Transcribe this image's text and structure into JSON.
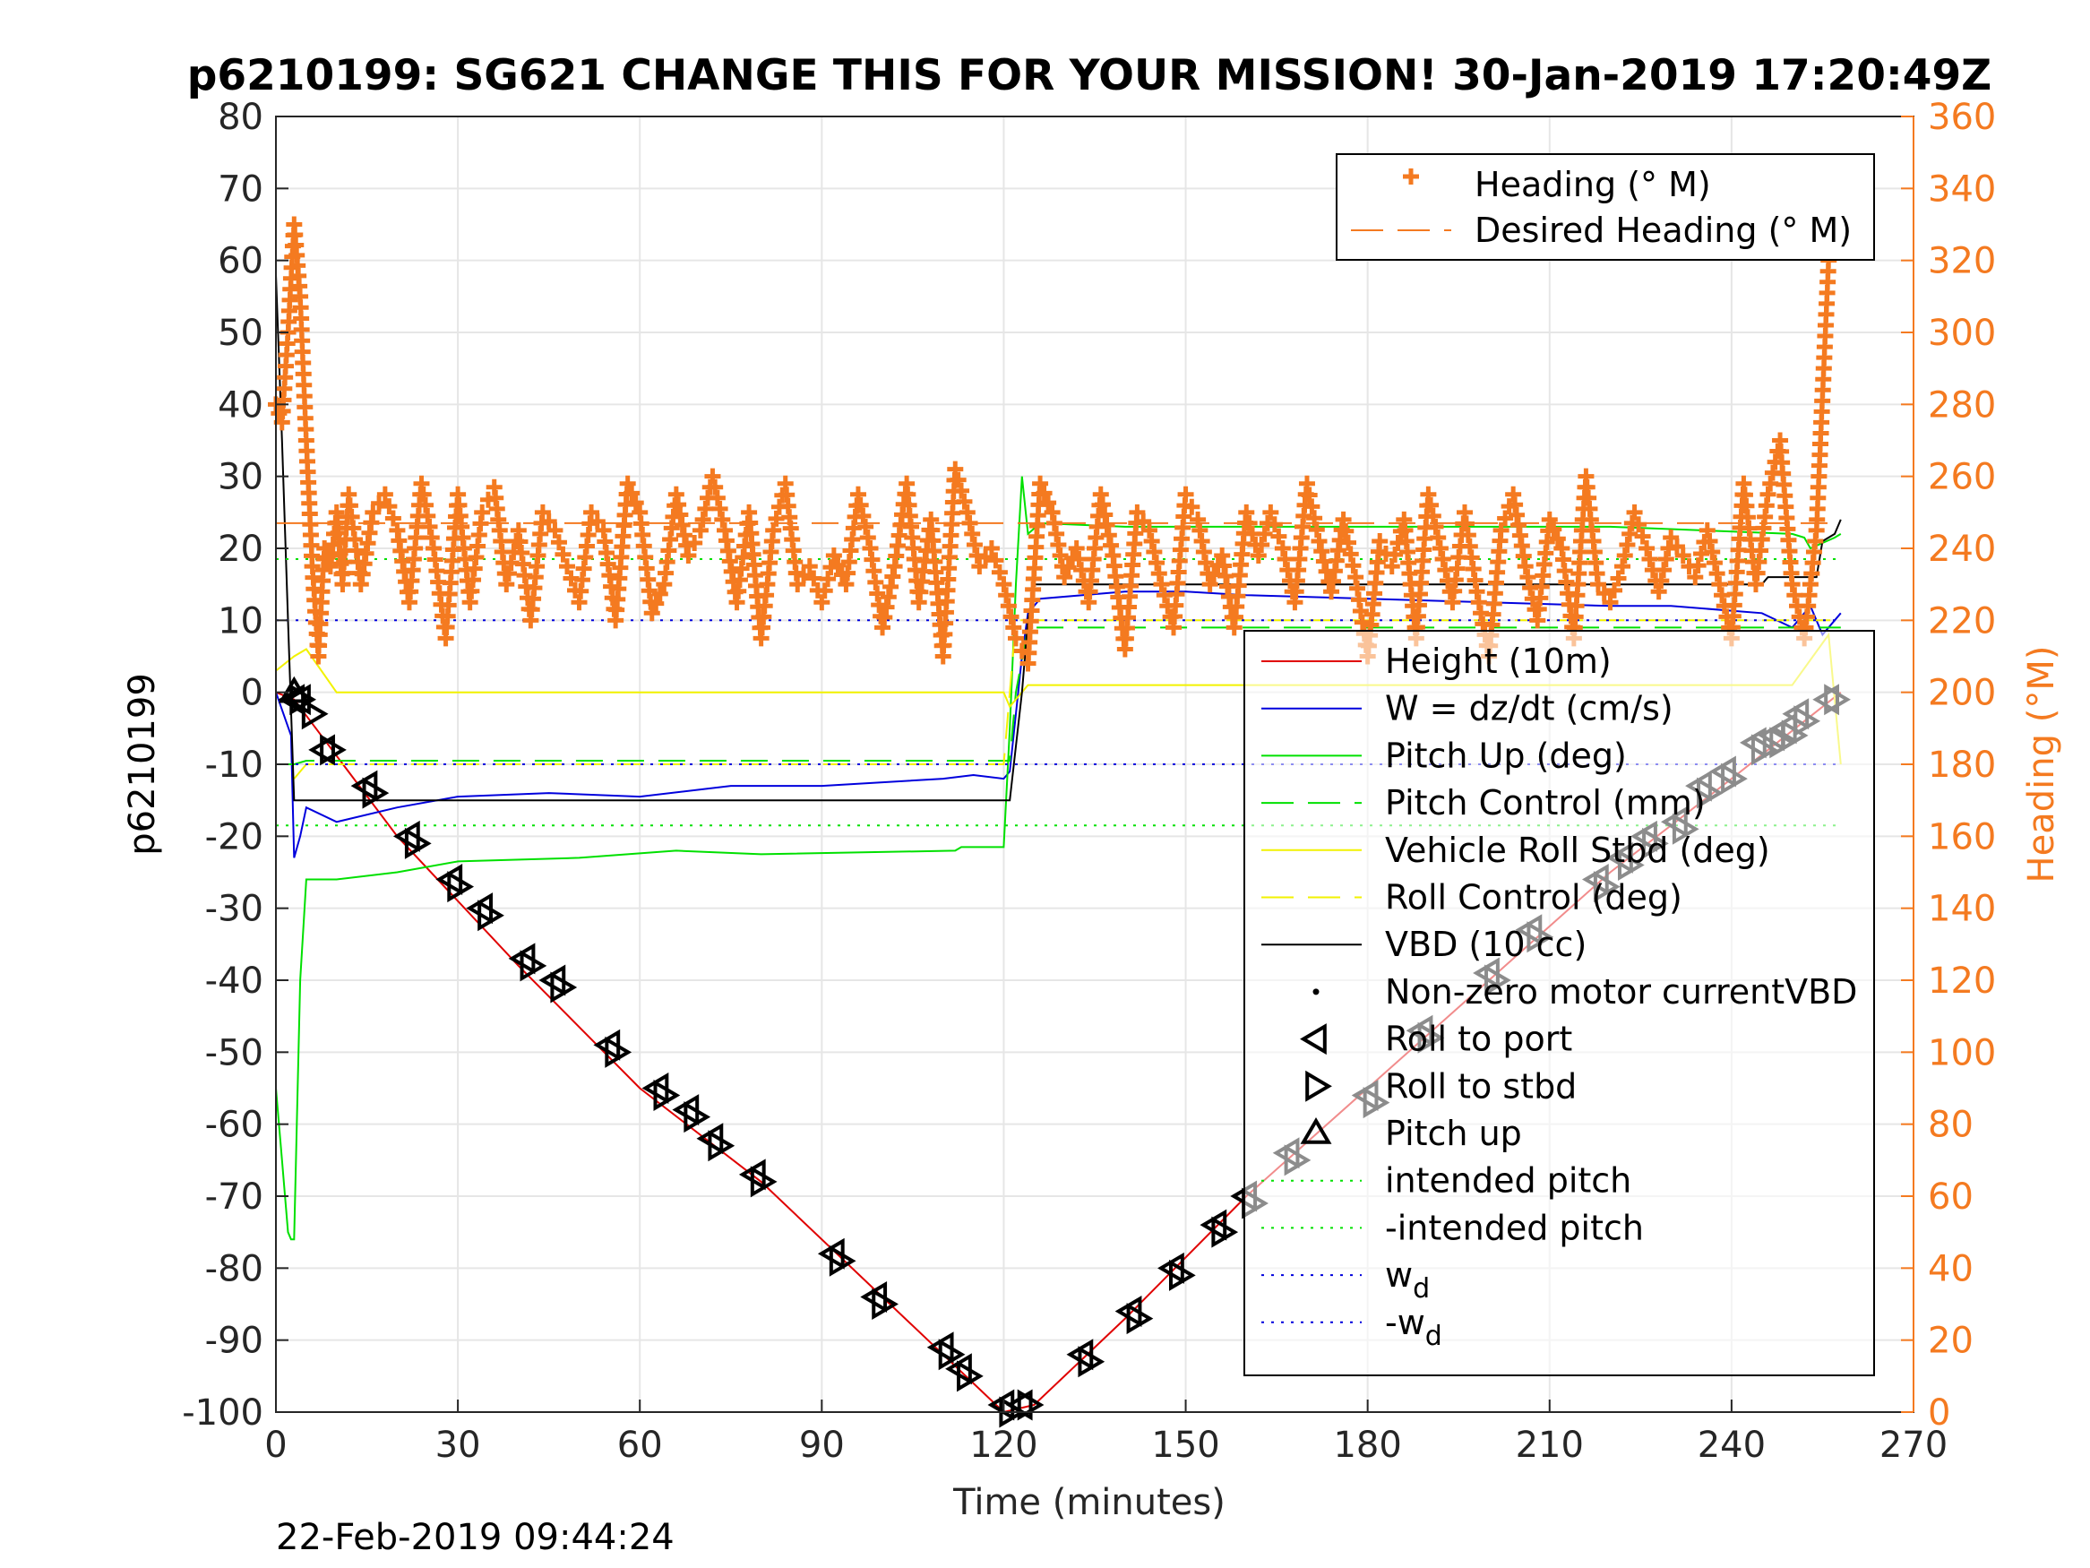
{
  "chart_data": {
    "type": "line",
    "title": "p6210199: SG621 CHANGE THIS FOR YOUR MISSION! 30-Jan-2019 17:20:49Z",
    "xlabel": "Time (minutes)",
    "ylabel_left": "p6210199",
    "ylabel_right": "Heading (°M)",
    "timestamp": "22-Feb-2019 09:44:24",
    "xlim": [
      0,
      270
    ],
    "ylim_left": [
      -100,
      80
    ],
    "ylim_right": [
      0,
      360
    ],
    "grid": true,
    "x_ticks": [
      0,
      30,
      60,
      90,
      120,
      150,
      180,
      210,
      240,
      270
    ],
    "x_tick_labels": [
      "0",
      "30",
      "60",
      "90",
      "120",
      "150",
      "180",
      "210",
      "240",
      "270"
    ],
    "y_left_ticks": [
      80,
      70,
      60,
      50,
      40,
      30,
      20,
      10,
      0,
      -10,
      -20,
      -30,
      -40,
      -50,
      -60,
      -70,
      -80,
      -90,
      -100
    ],
    "y_left_tick_labels": [
      "80",
      "70",
      "60",
      "50",
      "40",
      "30",
      "20",
      "10",
      "0",
      "-10",
      "-20",
      "-30",
      "-40",
      "-50",
      "-60",
      "-70",
      "-80",
      "-90",
      "-100"
    ],
    "y_right_ticks": [
      360,
      340,
      320,
      300,
      280,
      260,
      240,
      220,
      200,
      180,
      160,
      140,
      120,
      100,
      80,
      60,
      40,
      20,
      0
    ],
    "y_right_tick_labels": [
      "360",
      "340",
      "320",
      "300",
      "280",
      "260",
      "240",
      "220",
      "200",
      "180",
      "160",
      "140",
      "120",
      "100",
      "80",
      "60",
      "40",
      "20",
      "0"
    ],
    "colors": {
      "orange": "#f47a20",
      "red": "#e00000",
      "blue": "#0000dd",
      "green": "#00e000",
      "yellow": "#f2f200",
      "black": "#000000"
    },
    "legend_heading": {
      "placement": "top-right",
      "entries": [
        "Heading (° M)",
        "Desired Heading (° M)"
      ]
    },
    "legend_main": {
      "placement": "right",
      "entries": [
        {
          "label": "Height (10m)",
          "sub": ""
        },
        {
          "label": "W = dz/dt (cm/s)",
          "sub": ""
        },
        {
          "label": "Pitch Up (deg)",
          "sub": ""
        },
        {
          "label": "Pitch Control (mm)",
          "sub": ""
        },
        {
          "label": "Vehicle Roll Stbd (deg)",
          "sub": ""
        },
        {
          "label": "Roll Control (deg)",
          "sub": ""
        },
        {
          "label": "VBD (10 cc)",
          "sub": ""
        },
        {
          "label": "Non-zero motor currentVBD",
          "sub": ""
        },
        {
          "label": "Roll to port",
          "sub": ""
        },
        {
          "label": "Roll to stbd",
          "sub": ""
        },
        {
          "label": "Pitch up",
          "sub": ""
        },
        {
          "label": "intended pitch",
          "sub": ""
        },
        {
          "label": "-intended pitch",
          "sub": ""
        },
        {
          "label": "w",
          "sub": "d"
        },
        {
          "label": "-w",
          "sub": "d"
        }
      ]
    },
    "series": [
      {
        "name": "Height (10m)",
        "axis": "left",
        "x": [
          0,
          3,
          20,
          40,
          60,
          80,
          100,
          110,
          120,
          125,
          140,
          160,
          180,
          200,
          220,
          240,
          258
        ],
        "values": [
          0,
          -1,
          -20,
          -38,
          -55,
          -68,
          -84,
          -92,
          -100,
          -99,
          -87,
          -70,
          -55,
          -40,
          -25,
          -12,
          0
        ]
      },
      {
        "name": "W = dz/dt (cm/s)",
        "axis": "left",
        "x": [
          0,
          2.5,
          3,
          4,
          5,
          10,
          20,
          30,
          45,
          60,
          75,
          90,
          110,
          115,
          120,
          121,
          122,
          123,
          124,
          126,
          140,
          150,
          160,
          180,
          200,
          220,
          230,
          245,
          250,
          253,
          255,
          258
        ],
        "values": [
          0,
          -6,
          -23,
          -20,
          -16,
          -18,
          -16,
          -14.5,
          -14,
          -14.5,
          -13,
          -13,
          -12,
          -11.5,
          -12,
          -11,
          -3,
          5,
          11,
          13,
          14,
          14,
          13.5,
          13,
          12.5,
          12,
          12,
          11,
          9,
          12,
          8,
          11
        ]
      },
      {
        "name": "Pitch Up (deg)",
        "axis": "left",
        "x": [
          0,
          1,
          2,
          2.5,
          3,
          4,
          5,
          10,
          20,
          30,
          50,
          66,
          80,
          112,
          113,
          120,
          121,
          122,
          123,
          124,
          126,
          140,
          180,
          220,
          250,
          252,
          253,
          257,
          258
        ],
        "values": [
          -55,
          -65,
          -75,
          -76,
          -76,
          -40,
          -26,
          -26,
          -25,
          -23.5,
          -23,
          -22,
          -22.5,
          -22,
          -21.5,
          -21.5,
          -5,
          15,
          30,
          22,
          23.5,
          23,
          23,
          23,
          22,
          21.5,
          20,
          21.5,
          22
        ]
      },
      {
        "name": "Pitch Control (mm)",
        "axis": "left",
        "x": [
          2,
          3,
          5,
          50,
          121,
          122,
          124,
          180,
          250,
          258
        ],
        "values": [
          -10,
          -10,
          -9.5,
          -9.5,
          -9.5,
          0,
          9,
          9,
          9,
          9
        ]
      },
      {
        "name": "Vehicle Roll Stbd (deg)",
        "axis": "left",
        "x": [
          0,
          3,
          5,
          10,
          20,
          30,
          40,
          50,
          60,
          70,
          80,
          90,
          100,
          110,
          120,
          121,
          124,
          130,
          140,
          150,
          160,
          170,
          180,
          190,
          200,
          210,
          220,
          230,
          240,
          250,
          256,
          258
        ],
        "values": [
          3,
          5,
          6,
          0,
          0,
          0,
          0,
          0,
          0,
          0,
          0,
          0,
          0,
          0,
          0,
          -2,
          1,
          1,
          1,
          1,
          1,
          1,
          1,
          1,
          1,
          1,
          1,
          1,
          1,
          1,
          8,
          -10
        ]
      },
      {
        "name": "Roll Control (deg)",
        "axis": "left",
        "x": [
          3,
          5,
          120,
          121,
          122,
          257
        ],
        "values": [
          -12,
          -10,
          -10,
          0,
          10,
          10
        ]
      },
      {
        "name": "VBD (10 cc)",
        "axis": "left",
        "x": [
          0,
          1,
          2,
          3,
          120,
          121,
          123,
          124,
          125,
          245,
          246,
          254,
          255,
          257,
          258
        ],
        "values": [
          58,
          35,
          10,
          -15,
          -15,
          -15,
          0,
          10,
          15,
          15,
          16,
          16,
          21,
          22,
          24
        ]
      },
      {
        "name": "intended pitch",
        "axis": "left",
        "x": [
          0,
          258
        ],
        "values": [
          18.5,
          18.5
        ]
      },
      {
        "name": "-intended pitch",
        "axis": "left",
        "x": [
          0,
          258
        ],
        "values": [
          -18.5,
          -18.5
        ]
      },
      {
        "name": "w_d",
        "axis": "left",
        "x": [
          0,
          258
        ],
        "values": [
          10,
          10
        ]
      },
      {
        "name": "-w_d",
        "axis": "left",
        "x": [
          0,
          258
        ],
        "values": [
          -10,
          -10
        ]
      },
      {
        "name": "Desired Heading (° M)",
        "axis": "right",
        "x": [
          0,
          258
        ],
        "values": [
          247,
          247
        ]
      },
      {
        "name": "Heading (° M)",
        "axis": "right",
        "x": [
          0,
          1,
          2,
          3,
          4,
          5,
          6,
          7,
          8,
          9,
          10,
          11,
          12,
          14,
          16,
          18,
          20,
          22,
          24,
          26,
          28,
          30,
          32,
          34,
          36,
          38,
          40,
          42,
          44,
          46,
          48,
          50,
          52,
          54,
          56,
          58,
          60,
          62,
          64,
          66,
          68,
          70,
          72,
          74,
          76,
          78,
          80,
          82,
          84,
          86,
          88,
          90,
          92,
          94,
          96,
          98,
          100,
          102,
          104,
          106,
          108,
          110,
          112,
          114,
          116,
          118,
          120,
          122,
          124,
          126,
          128,
          130,
          132,
          134,
          136,
          138,
          140,
          142,
          144,
          146,
          148,
          150,
          152,
          154,
          156,
          158,
          160,
          162,
          164,
          166,
          168,
          170,
          172,
          174,
          176,
          178,
          180,
          182,
          184,
          186,
          188,
          190,
          192,
          194,
          196,
          198,
          200,
          202,
          204,
          206,
          208,
          210,
          212,
          214,
          216,
          218,
          220,
          222,
          224,
          226,
          228,
          230,
          232,
          234,
          236,
          238,
          240,
          242,
          244,
          246,
          248,
          250,
          252,
          254,
          256,
          258
        ],
        "values": [
          280,
          275,
          300,
          330,
          310,
          270,
          235,
          210,
          240,
          235,
          250,
          230,
          255,
          230,
          250,
          255,
          245,
          225,
          258,
          240,
          215,
          255,
          225,
          250,
          257,
          230,
          245,
          220,
          250,
          245,
          235,
          225,
          250,
          245,
          220,
          258,
          250,
          222,
          230,
          255,
          238,
          245,
          260,
          245,
          225,
          250,
          215,
          245,
          258,
          230,
          235,
          225,
          238,
          230,
          255,
          240,
          218,
          235,
          258,
          225,
          248,
          210,
          262,
          250,
          235,
          240,
          230,
          215,
          208,
          258,
          250,
          232,
          240,
          225,
          255,
          238,
          212,
          250,
          245,
          230,
          218,
          255,
          248,
          230,
          238,
          218,
          250,
          238,
          250,
          240,
          225,
          258,
          242,
          228,
          248,
          232,
          210,
          242,
          235,
          248,
          215,
          255,
          240,
          225,
          250,
          228,
          210,
          245,
          255,
          235,
          220,
          248,
          240,
          215,
          260,
          230,
          225,
          235,
          250,
          240,
          228,
          243,
          238,
          232,
          245,
          230,
          215,
          258,
          230,
          255,
          270,
          230,
          215,
          245,
          320,
          335
        ]
      }
    ],
    "markers": {
      "roll_port_x": [
        3,
        4,
        8,
        15,
        22,
        29,
        34,
        41,
        46,
        55,
        63,
        68,
        72,
        79,
        92,
        99,
        110,
        113,
        120,
        123,
        133,
        141,
        148,
        155,
        160,
        167,
        180,
        189,
        200,
        207,
        218,
        222,
        226,
        231,
        235,
        239,
        244,
        247,
        249,
        251,
        256
      ],
      "roll_port_y": [
        -1,
        -1,
        -8,
        -13,
        -20,
        -26,
        -30,
        -37,
        -40,
        -49,
        -55,
        -58,
        -62,
        -67,
        -78,
        -84,
        -91,
        -94,
        -99,
        -99,
        -92,
        -86,
        -80,
        -74,
        -70,
        -64,
        -56,
        -47,
        -39,
        -33,
        -26,
        -23,
        -20,
        -18,
        -13,
        -11,
        -7,
        -6,
        -5,
        -3,
        -1
      ],
      "roll_stbd_x": [
        4,
        6,
        9,
        16,
        23,
        30,
        35,
        42,
        47,
        56,
        64,
        69,
        73,
        80,
        93,
        100,
        111,
        114,
        121,
        124,
        134,
        142,
        149,
        156,
        161,
        168,
        181,
        190,
        201,
        208,
        219,
        223,
        227,
        232,
        236,
        240,
        245,
        248,
        250,
        252,
        257
      ],
      "roll_stbd_y": [
        -1,
        -3,
        -8,
        -14,
        -21,
        -27,
        -31,
        -38,
        -41,
        -50,
        -56,
        -59,
        -63,
        -68,
        -79,
        -85,
        -92,
        -95,
        -100,
        -99,
        -93,
        -87,
        -81,
        -75,
        -71,
        -65,
        -57,
        -48,
        -40,
        -34,
        -27,
        -24,
        -21,
        -19,
        -14,
        -12,
        -8,
        -7,
        -6,
        -4,
        -1
      ],
      "pitch_up_x": [
        3
      ],
      "pitch_up_y": [
        0
      ]
    }
  }
}
